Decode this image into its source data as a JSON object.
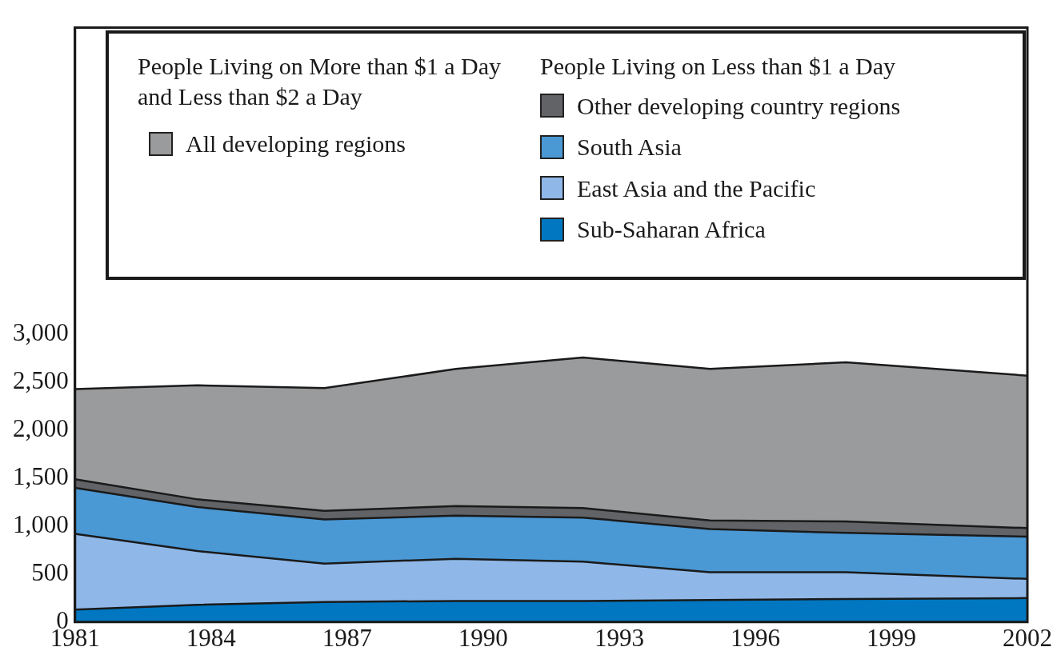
{
  "chart_data": {
    "type": "area",
    "stacked": true,
    "legend": "top",
    "annotations": [
      "People Living on More than $1 a Day and Less than $2 a Day",
      "People Living on Less than $1 a Day"
    ],
    "x": [
      1981,
      1983.7,
      1986.5,
      1989.4,
      1992.2,
      1995,
      1998,
      2002
    ],
    "xlim": [
      1981,
      2002
    ],
    "xticks": [
      1981,
      1984,
      1987,
      1990,
      1993,
      1996,
      1999,
      2002
    ],
    "ylim": [
      0,
      6200
    ],
    "yticks": [
      {
        "value": 0,
        "label": "0"
      },
      {
        "value": 500,
        "label": "500"
      },
      {
        "value": 1000,
        "label": "1,000"
      },
      {
        "value": 1500,
        "label": "1,500"
      },
      {
        "value": 2000,
        "label": "2,000"
      },
      {
        "value": 2500,
        "label": "2,500"
      },
      {
        "value": 3000,
        "label": "3,000"
      }
    ],
    "grid": false,
    "series": [
      {
        "name": "Sub-Saharan Africa",
        "color": "#0077c0",
        "values": [
          130,
          180,
          210,
          220,
          220,
          230,
          240,
          250
        ]
      },
      {
        "name": "East Asia and the Pacific",
        "color": "#8fb8e8",
        "values": [
          790,
          560,
          400,
          440,
          410,
          290,
          280,
          200
        ]
      },
      {
        "name": "South Asia",
        "color": "#4a98d4",
        "values": [
          480,
          460,
          460,
          450,
          460,
          450,
          410,
          440
        ]
      },
      {
        "name": "Other developing country regions",
        "color": "#626366",
        "values": [
          90,
          80,
          90,
          100,
          100,
          90,
          120,
          90
        ]
      },
      {
        "name": "All developing regions",
        "color": "#9a9b9d",
        "values": [
          940,
          1190,
          1280,
          1430,
          1570,
          1580,
          1660,
          1590
        ]
      }
    ]
  }
}
